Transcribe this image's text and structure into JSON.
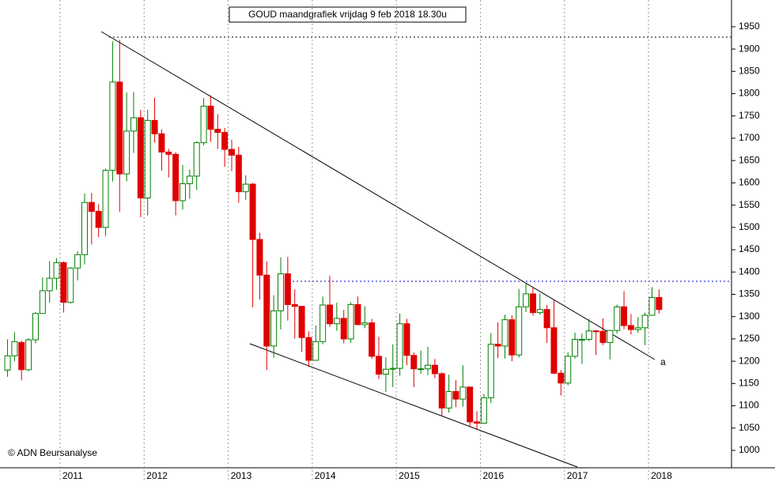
{
  "chart_data": {
    "type": "candlestick",
    "title": "GOUD maandgrafiek vrijdag 9 feb 2018 18.30u",
    "annotations": [
      "© ADN Beursanalyse",
      "a"
    ],
    "categories": [
      null,
      null,
      null,
      null,
      null,
      null,
      null,
      null,
      "2011",
      null,
      null,
      null,
      null,
      null,
      null,
      null,
      null,
      null,
      null,
      null,
      "2012",
      null,
      null,
      null,
      null,
      null,
      null,
      null,
      null,
      null,
      null,
      null,
      "2013",
      null,
      null,
      null,
      null,
      null,
      null,
      null,
      null,
      null,
      null,
      null,
      "2014",
      null,
      null,
      null,
      null,
      null,
      null,
      null,
      null,
      null,
      null,
      null,
      "2015",
      null,
      null,
      null,
      null,
      null,
      null,
      null,
      null,
      null,
      null,
      null,
      "2016",
      null,
      null,
      null,
      null,
      null,
      null,
      null,
      null,
      null,
      null,
      null,
      "2017",
      null,
      null,
      null,
      null,
      null,
      null,
      null,
      null,
      null,
      null,
      null,
      "2018",
      null
    ],
    "open": [
      1180,
      1212,
      1242,
      1181,
      1248,
      1307,
      1358,
      1386,
      1421,
      1332,
      1409,
      1439,
      1556,
      1536,
      1500,
      1628,
      1826,
      1620,
      1716,
      1746,
      1566,
      1740,
      1710,
      1669,
      1664,
      1560,
      1598,
      1615,
      1690,
      1772,
      1720,
      1713,
      1675,
      1662,
      1580,
      1597,
      1473,
      1393,
      1234,
      1313,
      1396,
      1327,
      1323,
      1253,
      1202,
      1244,
      1326,
      1284,
      1296,
      1250,
      1327,
      1282,
      1286,
      1211,
      1171,
      1182,
      1184,
      1284,
      1213,
      1183,
      1183,
      1191,
      1172,
      1095,
      1132,
      1115,
      1142,
      1064,
      1061,
      1118,
      1238,
      1234,
      1293,
      1214,
      1322,
      1351,
      1309,
      1316,
      1275,
      1173,
      1151,
      1211,
      1249,
      1249,
      1268,
      1267,
      1242,
      1269,
      1322,
      1280,
      1271,
      1275,
      1303,
      1343
    ],
    "high": [
      1249,
      1265,
      1246,
      1252,
      1310,
      1388,
      1424,
      1431,
      1424,
      1411,
      1447,
      1576,
      1577,
      1552,
      1632,
      1917,
      1921,
      1803,
      1804,
      1764,
      1764,
      1791,
      1720,
      1676,
      1669,
      1640,
      1630,
      1693,
      1790,
      1796,
      1754,
      1723,
      1697,
      1681,
      1617,
      1600,
      1488,
      1424,
      1348,
      1433,
      1434,
      1361,
      1324,
      1267,
      1280,
      1345,
      1392,
      1331,
      1315,
      1332,
      1345,
      1323,
      1295,
      1255,
      1209,
      1238,
      1307,
      1295,
      1220,
      1224,
      1232,
      1205,
      1175,
      1170,
      1157,
      1191,
      1143,
      1088,
      1127,
      1263,
      1287,
      1304,
      1303,
      1362,
      1375,
      1367,
      1352,
      1326,
      1337,
      1180,
      1220,
      1264,
      1262,
      1295,
      1270,
      1296,
      1270,
      1327,
      1357,
      1306,
      1299,
      1309,
      1366,
      1361
    ],
    "low": [
      1165,
      1200,
      1157,
      1177,
      1240,
      1315,
      1331,
      1360,
      1309,
      1329,
      1381,
      1417,
      1462,
      1478,
      1481,
      1603,
      1535,
      1603,
      1667,
      1523,
      1527,
      1690,
      1627,
      1612,
      1527,
      1540,
      1564,
      1584,
      1684,
      1692,
      1676,
      1636,
      1626,
      1555,
      1562,
      1321,
      1338,
      1180,
      1208,
      1271,
      1291,
      1251,
      1221,
      1187,
      1202,
      1238,
      1277,
      1268,
      1240,
      1241,
      1281,
      1274,
      1205,
      1160,
      1131,
      1142,
      1167,
      1191,
      1142,
      1172,
      1169,
      1162,
      1077,
      1085,
      1097,
      1098,
      1052,
      1046,
      1060,
      1106,
      1207,
      1206,
      1200,
      1208,
      1310,
      1302,
      1304,
      1241,
      1171,
      1123,
      1146,
      1206,
      1194,
      1245,
      1214,
      1236,
      1204,
      1262,
      1272,
      1260,
      1264,
      1236,
      1302,
      1307
    ],
    "close": [
      1212,
      1244,
      1181,
      1248,
      1307,
      1358,
      1386,
      1421,
      1332,
      1409,
      1439,
      1556,
      1536,
      1500,
      1628,
      1826,
      1620,
      1716,
      1746,
      1566,
      1740,
      1710,
      1669,
      1664,
      1560,
      1598,
      1615,
      1690,
      1772,
      1720,
      1713,
      1675,
      1662,
      1580,
      1597,
      1473,
      1393,
      1234,
      1313,
      1396,
      1327,
      1323,
      1253,
      1202,
      1244,
      1326,
      1284,
      1296,
      1250,
      1327,
      1282,
      1286,
      1211,
      1171,
      1182,
      1184,
      1284,
      1213,
      1183,
      1183,
      1191,
      1172,
      1095,
      1132,
      1115,
      1142,
      1064,
      1061,
      1118,
      1238,
      1234,
      1293,
      1214,
      1322,
      1351,
      1309,
      1316,
      1275,
      1173,
      1151,
      1211,
      1249,
      1249,
      1268,
      1267,
      1242,
      1269,
      1322,
      1280,
      1271,
      1275,
      1303,
      1343,
      1316
    ],
    "up_color": "#008000",
    "down_color": "#e00000",
    "ylim": [
      961,
      2010
    ],
    "yticks": [
      1000,
      1050,
      1100,
      1150,
      1200,
      1250,
      1300,
      1350,
      1400,
      1450,
      1500,
      1550,
      1600,
      1650,
      1700,
      1750,
      1800,
      1850,
      1900,
      1950
    ],
    "grid": true
  }
}
